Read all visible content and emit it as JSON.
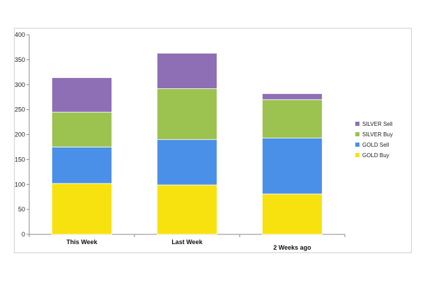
{
  "chart_data": {
    "type": "bar",
    "stacked": true,
    "categories": [
      "This Week",
      "Last Week",
      "2 Weeks ago"
    ],
    "series": [
      {
        "name": "GOLD Buy",
        "values": [
          102,
          99,
          81
        ],
        "color": "#f7e20f"
      },
      {
        "name": "GOLD Sell",
        "values": [
          73,
          91,
          112
        ],
        "color": "#4a90e8"
      },
      {
        "name": "SILVER Buy",
        "values": [
          70,
          102,
          77
        ],
        "color": "#9cc250"
      },
      {
        "name": "SILVER Sell",
        "values": [
          69,
          71,
          12
        ],
        "color": "#8e6fb6"
      }
    ],
    "yticks": [
      0,
      50,
      100,
      150,
      200,
      250,
      300,
      350,
      400
    ],
    "ylim": [
      0,
      400
    ],
    "grid": false,
    "legend_position": "right",
    "legend_order": [
      "SILVER Sell",
      "SILVER Buy",
      "GOLD Sell",
      "GOLD Buy"
    ]
  }
}
